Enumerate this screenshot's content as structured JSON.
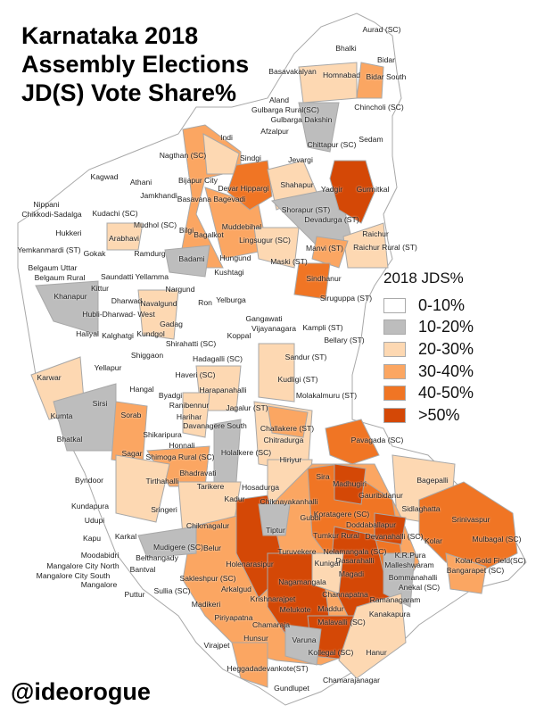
{
  "title": {
    "line1": "Karnataka 2018",
    "line2": "Assembly Elections",
    "line3": "JD(S) Vote Share%"
  },
  "legend": {
    "title": "2018 JDS%",
    "items": [
      {
        "label": "0-10%",
        "color": "#ffffff"
      },
      {
        "label": "10-20%",
        "color": "#bdbdbd"
      },
      {
        "label": "20-30%",
        "color": "#fdd8b2"
      },
      {
        "label": "30-40%",
        "color": "#fba662"
      },
      {
        "label": "40-50%",
        "color": "#f07524"
      },
      {
        "label": ">50%",
        "color": "#d44806"
      }
    ]
  },
  "credit": "@ideorogue",
  "constituency_labels": [
    "Aurad (SC)",
    "Bhalki",
    "Bidar",
    "Basavakalyan",
    "Homnabad",
    "Bidar South",
    "Aland",
    "Gulbarga Rural(SC)",
    "Gulbarga Dakshin",
    "Chincholi (SC)",
    "Afzalpur",
    "Indi",
    "Chittapur (SC)",
    "Sedam",
    "Nagthan (SC)",
    "Sindgi",
    "Jevargi",
    "Kagwad",
    "Athani",
    "Bijapur City",
    "Devar Hippargi",
    "Shahapur",
    "Yadgir",
    "Gurmitkal",
    "Jamkhandi",
    "Basavana Bagevadi",
    "Nippani",
    "Chikkodi-Sadalga",
    "Kudachi (SC)",
    "Shorapur (ST)",
    "Devadurga (ST)",
    "Mudhol (SC)",
    "Bilgi",
    "Muddebihal",
    "Raichur",
    "Hukkeri",
    "Arabhavi",
    "Bagalkot",
    "Lingsugur (SC)",
    "Raichur Rural (ST)",
    "Manvi (ST)",
    "Yemkanmardi (ST)",
    "Gokak",
    "Ramdurg",
    "Badami",
    "Hungund",
    "Maski (ST)",
    "Belgaum Uttar",
    "Kushtagi",
    "Belgaum Rural",
    "Saundatti Yellamma",
    "Sindhanur",
    "Kittur",
    "Nargund",
    "Khanapur",
    "Dharwad",
    "Navalgund",
    "Ron",
    "Yelburga",
    "Siruguppa (ST)",
    "Hubli-Dharwad- West",
    "Gadag",
    "Gangawati",
    "Vijayanagara",
    "Kampli (ST)",
    "Haliyal",
    "Kalghatgi",
    "Kundgol",
    "Koppal",
    "Bellary (ST)",
    "Shirahatti (SC)",
    "Shiggaon",
    "Hadagalli (SC)",
    "Sandur (ST)",
    "Yellapur",
    "Karwar",
    "Haveri (SC)",
    "Kudligi (ST)",
    "Hangal",
    "Byadgi",
    "Harapanahalli",
    "Molakalmuru (ST)",
    "Sirsi",
    "Ranibennur",
    "Jagalur (ST)",
    "Kumta",
    "Sorab",
    "Harihar",
    "Davanagere South",
    "Challakere (ST)",
    "Bhatkal",
    "Shikaripura",
    "Chitradurga",
    "Pavagada (SC)",
    "Honnali",
    "Sagar",
    "Shimoga Rural (SC)",
    "Holalkere (SC)",
    "Hiriyur",
    "Bhadravati",
    "Byndoor",
    "Tirthahalli",
    "Sira",
    "Bagepalli",
    "Madhugiri",
    "Tarikere",
    "Hosadurga",
    "Gauribidanur",
    "Kadur",
    "Chiknayakanhalli",
    "Kundapura",
    "Sidlaghatta",
    "Sringeri",
    "Koratagere (SC)",
    "Gubbi",
    "Srinivaspur",
    "Udupi",
    "Chikmagalur",
    "Doddaballapur",
    "Tiptur",
    "Tumkur Rural",
    "Devanahalli (SC)",
    "Karkal",
    "Kapu",
    "Kolar",
    "Mulbagal (SC)",
    "Mudigere (SC)",
    "Belur",
    "Turuvekere",
    "Nelamangala (SC)",
    "K.R.Pura",
    "Moodabidri",
    "Belthangady",
    "Kolar Gold Field(SC)",
    "Dasarahalli",
    "Kunigal",
    "Holenarasipur",
    "Malleshwaram",
    "Mangalore City North",
    "Bantval",
    "Bangarapet (SC)",
    "Magadi",
    "Mangalore City South",
    "Bommanahalli",
    "Sakleshpur (SC)",
    "Nagamangala",
    "Mangalore",
    "Anekal (SC)",
    "Arkalgud",
    "Sullia (SC)",
    "Puttur",
    "Channapatna",
    "Ramanagaram",
    "Krishnarajpet",
    "Madikeri",
    "Maddur",
    "Melukote",
    "Kanakapura",
    "Piriyapatna",
    "Malavalli (SC)",
    "Chamaraja",
    "Hunsur",
    "Varuna",
    "Virajpet",
    "Kollegal (SC)",
    "Hanur",
    "Heggadadevankote(ST)",
    "Chamarajanagar",
    "Gundlupet"
  ]
}
